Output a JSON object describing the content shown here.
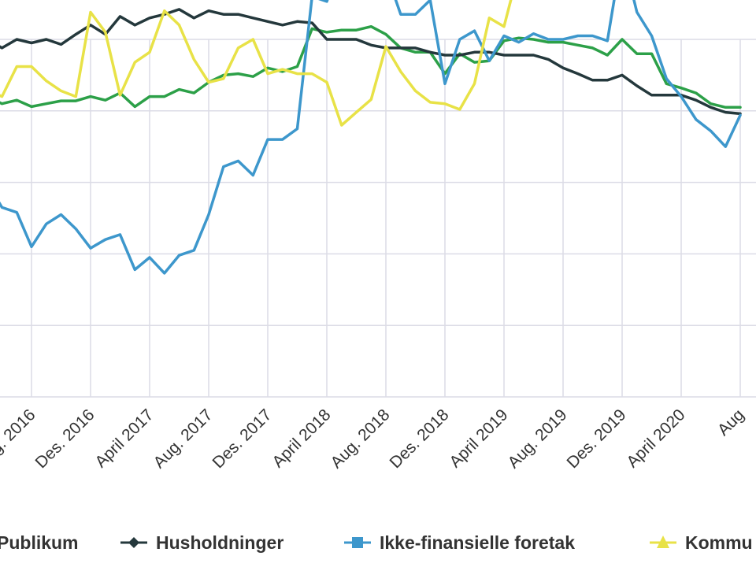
{
  "chart_data": {
    "type": "line",
    "x_tick_labels": [
      "April 2016",
      "Aug. 2016",
      "Des. 2016",
      "April 2017",
      "Aug. 2017",
      "Des. 2017",
      "April 2018",
      "Aug. 2018",
      "Des. 2018",
      "April 2019",
      "Aug. 2019",
      "Des. 2019",
      "April 2020",
      "Aug. 2020"
    ],
    "x_tick_months": [
      0,
      4,
      8,
      12,
      16,
      20,
      24,
      28,
      32,
      36,
      40,
      44,
      48,
      52
    ],
    "visible_tick_text": [
      "2016",
      "Aug. 2016",
      "Des. 2016",
      "April 2017",
      "Aug. 2017",
      "Des. 2017",
      "April 2018",
      "Aug. 2018",
      "Des. 2018",
      "April 2019",
      "Aug. 2019",
      "Des. 2019",
      "April 2020",
      "Aug"
    ],
    "y_gridlines": [
      0,
      1,
      2,
      3,
      4,
      5
    ],
    "grid": true,
    "legend_position": "bottom",
    "series": [
      {
        "name": "Publikum",
        "color": "#2ca048",
        "marker": "circle",
        "values": [
          4.35,
          4.2,
          4.1,
          4.15,
          4.06,
          4.1,
          4.14,
          4.14,
          4.2,
          4.15,
          4.25,
          4.06,
          4.2,
          4.2,
          4.3,
          4.25,
          4.4,
          4.5,
          4.52,
          4.48,
          4.6,
          4.55,
          4.62,
          5.15,
          5.1,
          5.13,
          5.13,
          5.18,
          5.07,
          4.88,
          4.82,
          4.82,
          4.52,
          4.8,
          4.68,
          4.7,
          4.98,
          5.02,
          5.0,
          4.96,
          4.96,
          4.92,
          4.88,
          4.78,
          5.0,
          4.8,
          4.8,
          4.38,
          4.32,
          4.25,
          4.1,
          4.05,
          4.05
        ]
      },
      {
        "name": "Husholdninger",
        "color": "#24383c",
        "marker": "diamond",
        "values": [
          5.1,
          5.0,
          4.88,
          5.0,
          4.95,
          5.0,
          4.93,
          5.07,
          5.2,
          5.07,
          5.32,
          5.2,
          5.3,
          5.35,
          5.42,
          5.3,
          5.4,
          5.35,
          5.35,
          5.3,
          5.25,
          5.2,
          5.25,
          5.23,
          5.0,
          5.0,
          5.0,
          4.92,
          4.88,
          4.88,
          4.88,
          4.82,
          4.78,
          4.78,
          4.82,
          4.82,
          4.78,
          4.78,
          4.78,
          4.72,
          4.6,
          4.52,
          4.43,
          4.43,
          4.5,
          4.35,
          4.22,
          4.22,
          4.22,
          4.15,
          4.05,
          3.98,
          3.96
        ]
      },
      {
        "name": "Ikke-finansielle foretak",
        "color": "#3d97cc",
        "marker": "square",
        "values": [
          3.3,
          3.0,
          2.65,
          2.58,
          2.1,
          2.42,
          2.55,
          2.35,
          2.08,
          2.2,
          2.27,
          1.78,
          1.95,
          1.73,
          1.98,
          2.05,
          2.55,
          3.22,
          3.3,
          3.1,
          3.6,
          3.6,
          3.75,
          5.6,
          5.53,
          6.12,
          6.25,
          6.5,
          5.95,
          5.35,
          5.35,
          5.55,
          4.38,
          5.0,
          5.12,
          4.7,
          5.05,
          4.96,
          5.08,
          5.0,
          5.0,
          5.05,
          5.05,
          4.98,
          6.22,
          5.38,
          5.05,
          4.45,
          4.2,
          3.88,
          3.72,
          3.5,
          3.94
        ]
      },
      {
        "name": "Kommuner",
        "color": "#e8e247",
        "marker": "triangle",
        "values": [
          4.5,
          4.3,
          4.2,
          4.62,
          4.62,
          4.42,
          4.28,
          4.2,
          5.38,
          5.1,
          4.22,
          4.68,
          4.82,
          5.4,
          5.2,
          4.72,
          4.4,
          4.45,
          4.88,
          5.0,
          4.52,
          4.58,
          4.52,
          4.52,
          4.4,
          3.8,
          3.98,
          4.16,
          4.9,
          4.55,
          4.28,
          4.12,
          4.1,
          4.02,
          4.38,
          5.3,
          5.18,
          5.98,
          6.28,
          5.82,
          5.7,
          5.7,
          5.82,
          5.78,
          5.92,
          6.28,
          6.38,
          5.95,
          6.1,
          6.1,
          5.75,
          6.35,
          6.22
        ]
      }
    ],
    "legend_visible_text": [
      "Publikum",
      "Husholdninger",
      "Ikke-finansielle foretak",
      "Kommu"
    ]
  }
}
